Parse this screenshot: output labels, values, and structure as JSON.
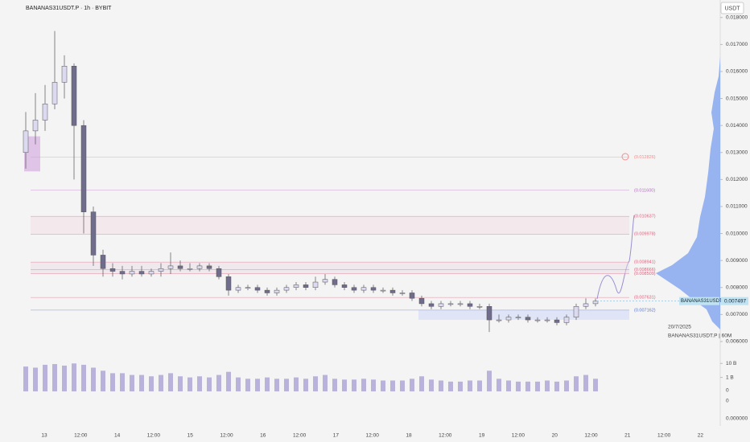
{
  "chart_data": {
    "type": "candlestick",
    "title": "BANANAS31USDT.P · 1h · BYBIT",
    "currency_button": "USDT",
    "symbol_tag": "BANANAS31USDT.P",
    "date_note": "20/7/2025",
    "legend_note": "BANANAS31USDT.P | 60M",
    "ylim": [
      0.00579,
      0.01841
    ],
    "yticks": [
      {
        "value": 0.006,
        "label": "0.006000"
      },
      {
        "value": 0.007,
        "label": "0.007000"
      },
      {
        "value": 0.008,
        "label": "0.008000"
      },
      {
        "value": 0.009,
        "label": "0.009000"
      },
      {
        "value": 0.01,
        "label": "0.010000"
      },
      {
        "value": 0.011,
        "label": "0.011000"
      },
      {
        "value": 0.012,
        "label": "0.012000"
      },
      {
        "value": 0.013,
        "label": "0.013000"
      },
      {
        "value": 0.014,
        "label": "0.014000"
      },
      {
        "value": 0.015,
        "label": "0.015000"
      },
      {
        "value": 0.016,
        "label": "0.016000"
      },
      {
        "value": 0.017,
        "label": "0.017000"
      },
      {
        "value": 0.018,
        "label": "0.018000"
      }
    ],
    "x_labels": [
      "13",
      "12:00",
      "14",
      "12:00",
      "15",
      "12:00",
      "16",
      "12:00",
      "17",
      "12:00",
      "18",
      "12:00",
      "19",
      "12:00",
      "20",
      "12:00",
      "21",
      "12:00",
      "22"
    ],
    "up_color": "#dcdaf0",
    "down_color": "#6f6c8c",
    "series": [
      {
        "name": "BANANAS31USDT.P",
        "open": [
          0.013,
          0.0138,
          0.0142,
          0.0148,
          0.0156,
          0.0162,
          0.014,
          0.0108,
          0.0092,
          0.0087,
          0.0086,
          0.0085,
          0.0086,
          0.0085,
          0.0086,
          0.0087,
          0.0088,
          0.0087,
          0.0087,
          0.0088,
          0.0087,
          0.0084,
          0.0079,
          0.008,
          0.008,
          0.0079,
          0.0078,
          0.0079,
          0.008,
          0.0081,
          0.008,
          0.0082,
          0.0083,
          0.0081,
          0.008,
          0.0079,
          0.008,
          0.0079,
          0.0079,
          0.0078,
          0.0078,
          0.0076,
          0.0074,
          0.0073,
          0.0074,
          0.0074,
          0.0074,
          0.0073,
          0.0073,
          0.0068,
          0.0068,
          0.0069,
          0.0069,
          0.0068,
          0.0068,
          0.0068,
          0.0067,
          0.0069,
          0.0073,
          0.0074
        ],
        "high": [
          0.0145,
          0.0152,
          0.0155,
          0.0175,
          0.0166,
          0.0163,
          0.0142,
          0.011,
          0.0094,
          0.0089,
          0.0088,
          0.0088,
          0.0088,
          0.0087,
          0.0089,
          0.0093,
          0.009,
          0.0089,
          0.0089,
          0.0089,
          0.0088,
          0.0085,
          0.0081,
          0.0081,
          0.0081,
          0.008,
          0.008,
          0.0081,
          0.0082,
          0.0082,
          0.0084,
          0.0085,
          0.0084,
          0.0082,
          0.0081,
          0.0081,
          0.0081,
          0.008,
          0.008,
          0.0079,
          0.0079,
          0.0077,
          0.0075,
          0.0075,
          0.0075,
          0.0075,
          0.0075,
          0.0074,
          0.0074,
          0.007,
          0.007,
          0.007,
          0.007,
          0.0069,
          0.0069,
          0.0069,
          0.007,
          0.0074,
          0.0076,
          0.0076
        ],
        "low": [
          0.0124,
          0.0133,
          0.0138,
          0.0146,
          0.015,
          0.012,
          0.01,
          0.0088,
          0.0084,
          0.0084,
          0.0083,
          0.0084,
          0.0084,
          0.0084,
          0.0084,
          0.0085,
          0.0086,
          0.0086,
          0.0086,
          0.0086,
          0.0083,
          0.0077,
          0.0078,
          0.0079,
          0.0078,
          0.0077,
          0.0077,
          0.0078,
          0.0079,
          0.0079,
          0.0079,
          0.0081,
          0.008,
          0.0079,
          0.0078,
          0.0078,
          0.0078,
          0.0078,
          0.0077,
          0.0077,
          0.0075,
          0.0073,
          0.0072,
          0.0072,
          0.0073,
          0.0073,
          0.0072,
          0.0072,
          0.00635,
          0.0067,
          0.0067,
          0.0068,
          0.0067,
          0.0067,
          0.0067,
          0.0066,
          0.0066,
          0.0068,
          0.0072,
          0.0073
        ],
        "close": [
          0.0138,
          0.0142,
          0.0148,
          0.0156,
          0.0162,
          0.014,
          0.0108,
          0.0092,
          0.0087,
          0.0086,
          0.0085,
          0.0086,
          0.0085,
          0.0086,
          0.0087,
          0.0088,
          0.0087,
          0.0087,
          0.0088,
          0.0087,
          0.0084,
          0.0079,
          0.008,
          0.008,
          0.0079,
          0.0078,
          0.0079,
          0.008,
          0.0081,
          0.008,
          0.0082,
          0.0083,
          0.0081,
          0.008,
          0.0079,
          0.008,
          0.0079,
          0.0079,
          0.0078,
          0.0078,
          0.0076,
          0.0074,
          0.0073,
          0.0074,
          0.0074,
          0.0074,
          0.0073,
          0.0073,
          0.0068,
          0.0068,
          0.0069,
          0.0069,
          0.0068,
          0.0068,
          0.0068,
          0.0067,
          0.0069,
          0.0073,
          0.0074,
          0.007497
        ],
        "volume": [
          6,
          5,
          8,
          9,
          7,
          10,
          8,
          5,
          3,
          2,
          2,
          1.5,
          1.5,
          1.2,
          1.5,
          2,
          1.2,
          1,
          1.2,
          1,
          1.5,
          2.5,
          1,
          0.8,
          0.8,
          1,
          0.8,
          0.8,
          1,
          0.8,
          1.2,
          1.5,
          0.8,
          0.7,
          0.7,
          0.8,
          0.7,
          0.6,
          0.6,
          0.6,
          0.8,
          1.2,
          0.7,
          0.6,
          0.5,
          0.5,
          0.6,
          0.6,
          3,
          0.8,
          0.6,
          0.5,
          0.5,
          0.5,
          0.6,
          0.5,
          0.6,
          1.2,
          1.5,
          0.8
        ]
      }
    ],
    "volume_lim": [
      0.1,
      20
    ],
    "volume_ticks": [
      {
        "value": 10,
        "label": "10 B"
      },
      {
        "value": 1,
        "label": "1 B"
      }
    ],
    "volume_color": "#b9b3dc",
    "panel_labels": [
      "0",
      "0",
      "0.000000"
    ],
    "current_price": {
      "value": 0.007497,
      "label": "0.007497"
    },
    "levels": [
      {
        "value": 0.012826,
        "label": "(0.012826)",
        "color": "#ee8f8f"
      },
      {
        "value": 0.0116,
        "label": "(0.011600)",
        "color": "#b46fc1"
      },
      {
        "value": 0.010637,
        "label": "(0.010637)",
        "color": "#e0607a"
      },
      {
        "value": 0.009978,
        "label": "(0.009978)",
        "color": "#e0607a"
      },
      {
        "value": 0.008941,
        "label": "(0.008941)",
        "color": "#e0607a"
      },
      {
        "value": 0.008666,
        "label": "(0.008666)",
        "color": "#e0607a"
      },
      {
        "value": 0.008509,
        "label": "(0.008509)",
        "color": "#e0607a"
      },
      {
        "value": 0.007631,
        "label": "(0.007631)",
        "color": "#e0607a"
      },
      {
        "value": 0.007162,
        "label": "(0.007162)",
        "color": "#5a76c8"
      }
    ]
  }
}
